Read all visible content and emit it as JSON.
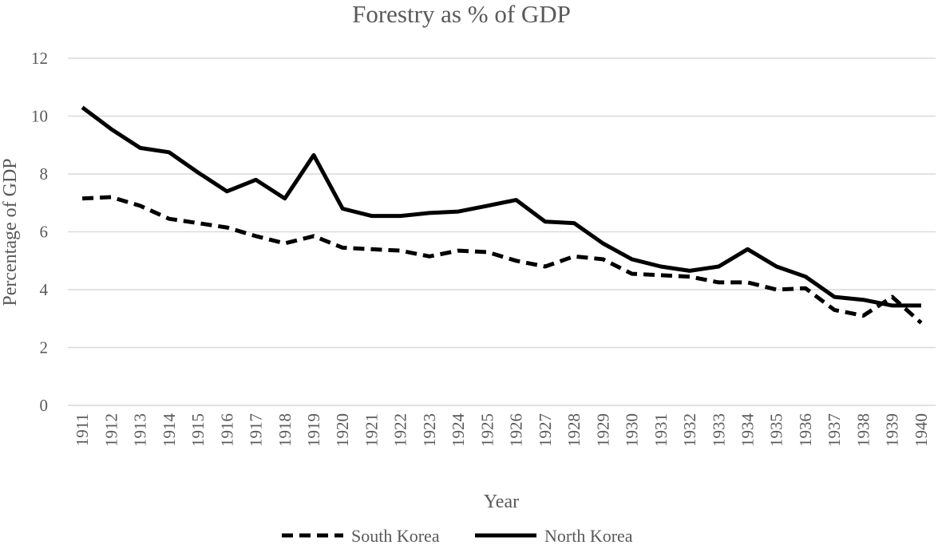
{
  "chart_data": {
    "type": "line",
    "title": "Forestry as % of GDP",
    "xlabel": "Year",
    "ylabel": "Percentage of GDP",
    "ylim": [
      0,
      12
    ],
    "yticks": [
      "0",
      "2",
      "4",
      "6",
      "8",
      "10",
      "12"
    ],
    "grid": true,
    "legend_position": "bottom",
    "categories": [
      "1911",
      "1912",
      "1913",
      "1914",
      "1915",
      "1916",
      "1917",
      "1918",
      "1919",
      "1920",
      "1921",
      "1922",
      "1923",
      "1924",
      "1925",
      "1926",
      "1927",
      "1928",
      "1929",
      "1930",
      "1931",
      "1932",
      "1933",
      "1934",
      "1935",
      "1936",
      "1937",
      "1938",
      "1939",
      "1940"
    ],
    "series": [
      {
        "name": "South Korea",
        "style": "dashed",
        "color": "#000000",
        "values": [
          7.15,
          7.2,
          6.9,
          6.45,
          6.3,
          6.15,
          5.85,
          5.6,
          5.85,
          5.45,
          5.4,
          5.35,
          5.15,
          5.35,
          5.3,
          5.0,
          4.8,
          5.15,
          5.05,
          4.55,
          4.5,
          4.45,
          4.25,
          4.25,
          4.0,
          4.05,
          3.3,
          3.1,
          3.75,
          2.85
        ]
      },
      {
        "name": "North Korea",
        "style": "solid",
        "color": "#000000",
        "values": [
          10.3,
          9.55,
          8.9,
          8.75,
          8.05,
          7.4,
          7.8,
          7.15,
          8.65,
          6.8,
          6.55,
          6.55,
          6.65,
          6.7,
          6.9,
          7.1,
          6.35,
          6.3,
          5.6,
          5.05,
          4.8,
          4.65,
          4.8,
          5.4,
          4.8,
          4.45,
          3.75,
          3.65,
          3.45,
          3.45
        ]
      }
    ]
  }
}
